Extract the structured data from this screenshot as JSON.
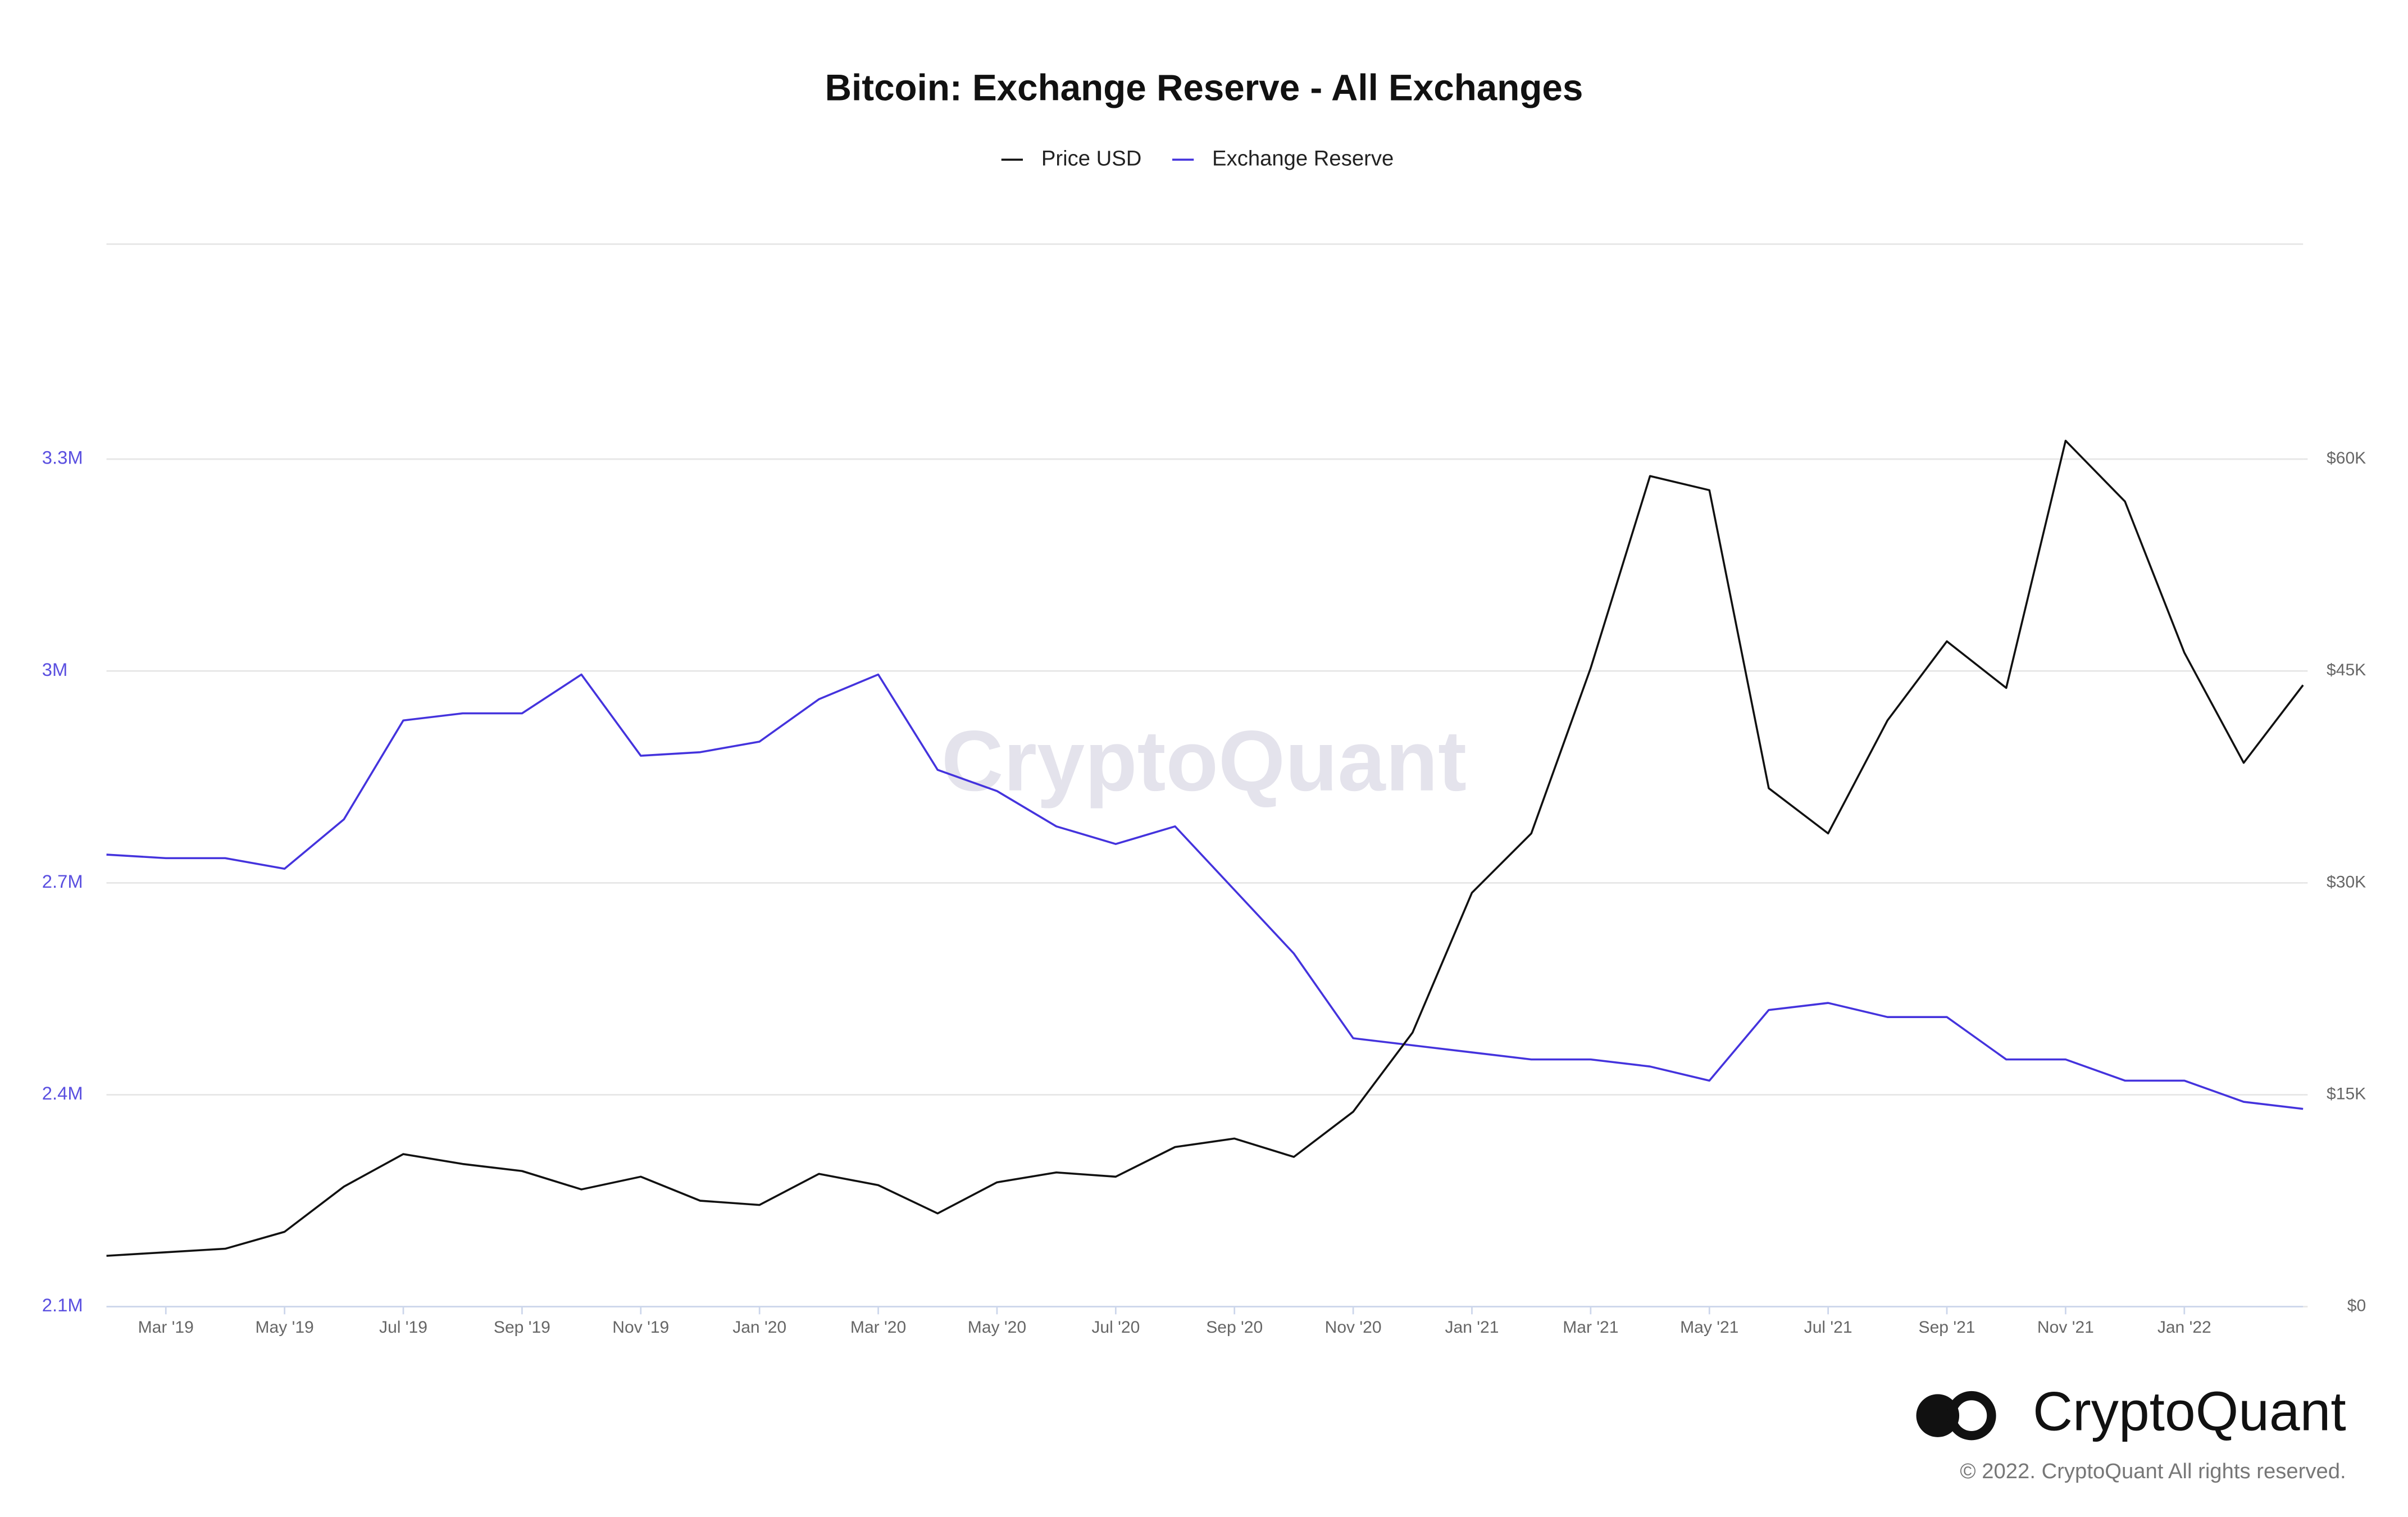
{
  "chart_data": {
    "type": "line",
    "title": "Bitcoin: Exchange Reserve - All Exchanges",
    "watermark": "CryptoQuant",
    "logo_text": "CryptoQuant",
    "copyright": "© 2022. CryptoQuant All rights reserved.",
    "x": [
      "2019-02",
      "2019-03",
      "2019-04",
      "2019-05",
      "2019-06",
      "2019-07",
      "2019-08",
      "2019-09",
      "2019-10",
      "2019-11",
      "2019-12",
      "2020-01",
      "2020-02",
      "2020-03",
      "2020-04",
      "2020-05",
      "2020-06",
      "2020-07",
      "2020-08",
      "2020-09",
      "2020-10",
      "2020-11",
      "2020-12",
      "2021-01",
      "2021-02",
      "2021-03",
      "2021-04",
      "2021-05",
      "2021-06",
      "2021-07",
      "2021-08",
      "2021-09",
      "2021-10",
      "2021-11",
      "2021-12",
      "2022-01",
      "2022-02",
      "2022-03"
    ],
    "xlim": [
      "2019-02",
      "2022-03"
    ],
    "xticks": [
      {
        "value": "2019-03",
        "label": "Mar '19"
      },
      {
        "value": "2019-05",
        "label": "May '19"
      },
      {
        "value": "2019-07",
        "label": "Jul '19"
      },
      {
        "value": "2019-09",
        "label": "Sep '19"
      },
      {
        "value": "2019-11",
        "label": "Nov '19"
      },
      {
        "value": "2020-01",
        "label": "Jan '20"
      },
      {
        "value": "2020-03",
        "label": "Mar '20"
      },
      {
        "value": "2020-05",
        "label": "May '20"
      },
      {
        "value": "2020-07",
        "label": "Jul '20"
      },
      {
        "value": "2020-09",
        "label": "Sep '20"
      },
      {
        "value": "2020-11",
        "label": "Nov '20"
      },
      {
        "value": "2021-01",
        "label": "Jan '21"
      },
      {
        "value": "2021-03",
        "label": "Mar '21"
      },
      {
        "value": "2021-05",
        "label": "May '21"
      },
      {
        "value": "2021-07",
        "label": "Jul '21"
      },
      {
        "value": "2021-09",
        "label": "Sep '21"
      },
      {
        "value": "2021-11",
        "label": "Nov '21"
      },
      {
        "value": "2022-01",
        "label": "Jan '22"
      }
    ],
    "ylim": [
      2100000,
      3600000
    ],
    "yticks": [
      {
        "value": 2100000,
        "label": "2.1M"
      },
      {
        "value": 2400000,
        "label": "2.4M"
      },
      {
        "value": 2700000,
        "label": "2.7M"
      },
      {
        "value": 3000000,
        "label": "3M"
      },
      {
        "value": 3300000,
        "label": "3.3M"
      }
    ],
    "y2lim": [
      0,
      75000
    ],
    "y2ticks": [
      {
        "value": 0,
        "label": "$0"
      },
      {
        "value": 15000,
        "label": "$15K"
      },
      {
        "value": 30000,
        "label": "$30K"
      },
      {
        "value": 45000,
        "label": "$45K"
      },
      {
        "value": 60000,
        "label": "$60K"
      }
    ],
    "grid": true,
    "legend": "top",
    "series": [
      {
        "name": "Price USD",
        "color": "#111111",
        "axis": "y2",
        "values": [
          3600,
          3850,
          4100,
          5300,
          8500,
          10800,
          10100,
          9600,
          8300,
          9200,
          7500,
          7200,
          9400,
          8600,
          6600,
          8800,
          9500,
          9200,
          11300,
          11900,
          10600,
          13800,
          19400,
          29300,
          33500,
          45200,
          58800,
          57800,
          36700,
          33500,
          41500,
          47100,
          43800,
          61300,
          57000,
          46300,
          38500,
          44000
        ]
      },
      {
        "name": "Exchange Reserve",
        "color": "#4433dd",
        "values": [
          2740000,
          2735000,
          2735000,
          2720000,
          2790000,
          2930000,
          2940000,
          2940000,
          2995000,
          2880000,
          2885000,
          2900000,
          2960000,
          2995000,
          2860000,
          2830000,
          2780000,
          2755000,
          2780000,
          2690000,
          2600000,
          2480000,
          2470000,
          2460000,
          2450000,
          2450000,
          2440000,
          2420000,
          2520000,
          2530000,
          2510000,
          2510000,
          2450000,
          2450000,
          2420000,
          2420000,
          2390000,
          2380000
        ]
      }
    ]
  }
}
